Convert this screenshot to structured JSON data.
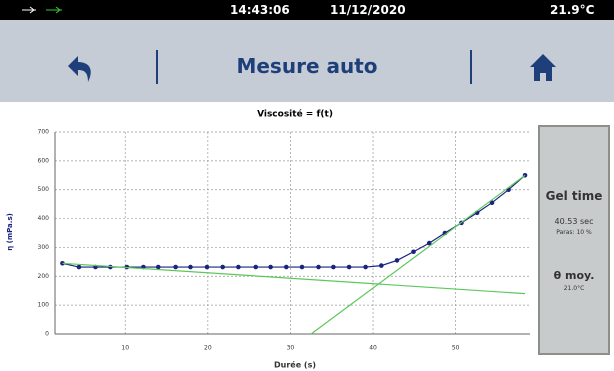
{
  "status_bar": {
    "time": "14:43:06",
    "date": "11/12/2020",
    "temperature": "21.9°C"
  },
  "header": {
    "title": "Mesure auto"
  },
  "chart_data": {
    "type": "line",
    "title": "Viscosité = f(t)",
    "x_label": "Durée (s)",
    "y_label": "η (mPa.s)",
    "xlim": [
      1.5,
      59
    ],
    "xticks": [
      10,
      20,
      30,
      40,
      50
    ],
    "ylim": [
      0,
      700
    ],
    "yticks": [
      0,
      100,
      200,
      300,
      400,
      500,
      600,
      700
    ],
    "grid": true,
    "series": [
      {
        "color": "#1a237e",
        "markers": true,
        "x": [
          2.4,
          4.4,
          6.4,
          8.2,
          10.2,
          12.2,
          14.0,
          16.1,
          17.9,
          19.9,
          21.8,
          23.7,
          25.8,
          27.6,
          29.5,
          31.4,
          33.4,
          35.2,
          37.1,
          39.1,
          41.0,
          42.9,
          44.9,
          46.8,
          48.7,
          50.7,
          52.6,
          54.4,
          56.4,
          58.4
        ],
        "values": [
          245,
          232,
          232,
          232,
          232,
          232,
          232,
          232,
          232,
          232,
          232,
          232,
          232,
          232,
          232,
          232,
          232,
          232,
          232,
          232,
          237,
          255,
          285,
          315,
          350,
          385,
          420,
          455,
          500,
          550
        ]
      },
      {
        "color": "#5cc85c",
        "markers": false,
        "x": [
          2.4,
          58.4
        ],
        "values": [
          245,
          140
        ]
      },
      {
        "color": "#5cc85c",
        "markers": false,
        "x": [
          32.5,
          58.4
        ],
        "values": [
          0,
          550
        ]
      }
    ]
  },
  "side_panel": {
    "gel_label": "Gel time",
    "gel_value": "40.53 sec",
    "gel_note": "Paras: 10 %",
    "temp_label": "θ moy.",
    "temp_value": "21.0°C"
  }
}
